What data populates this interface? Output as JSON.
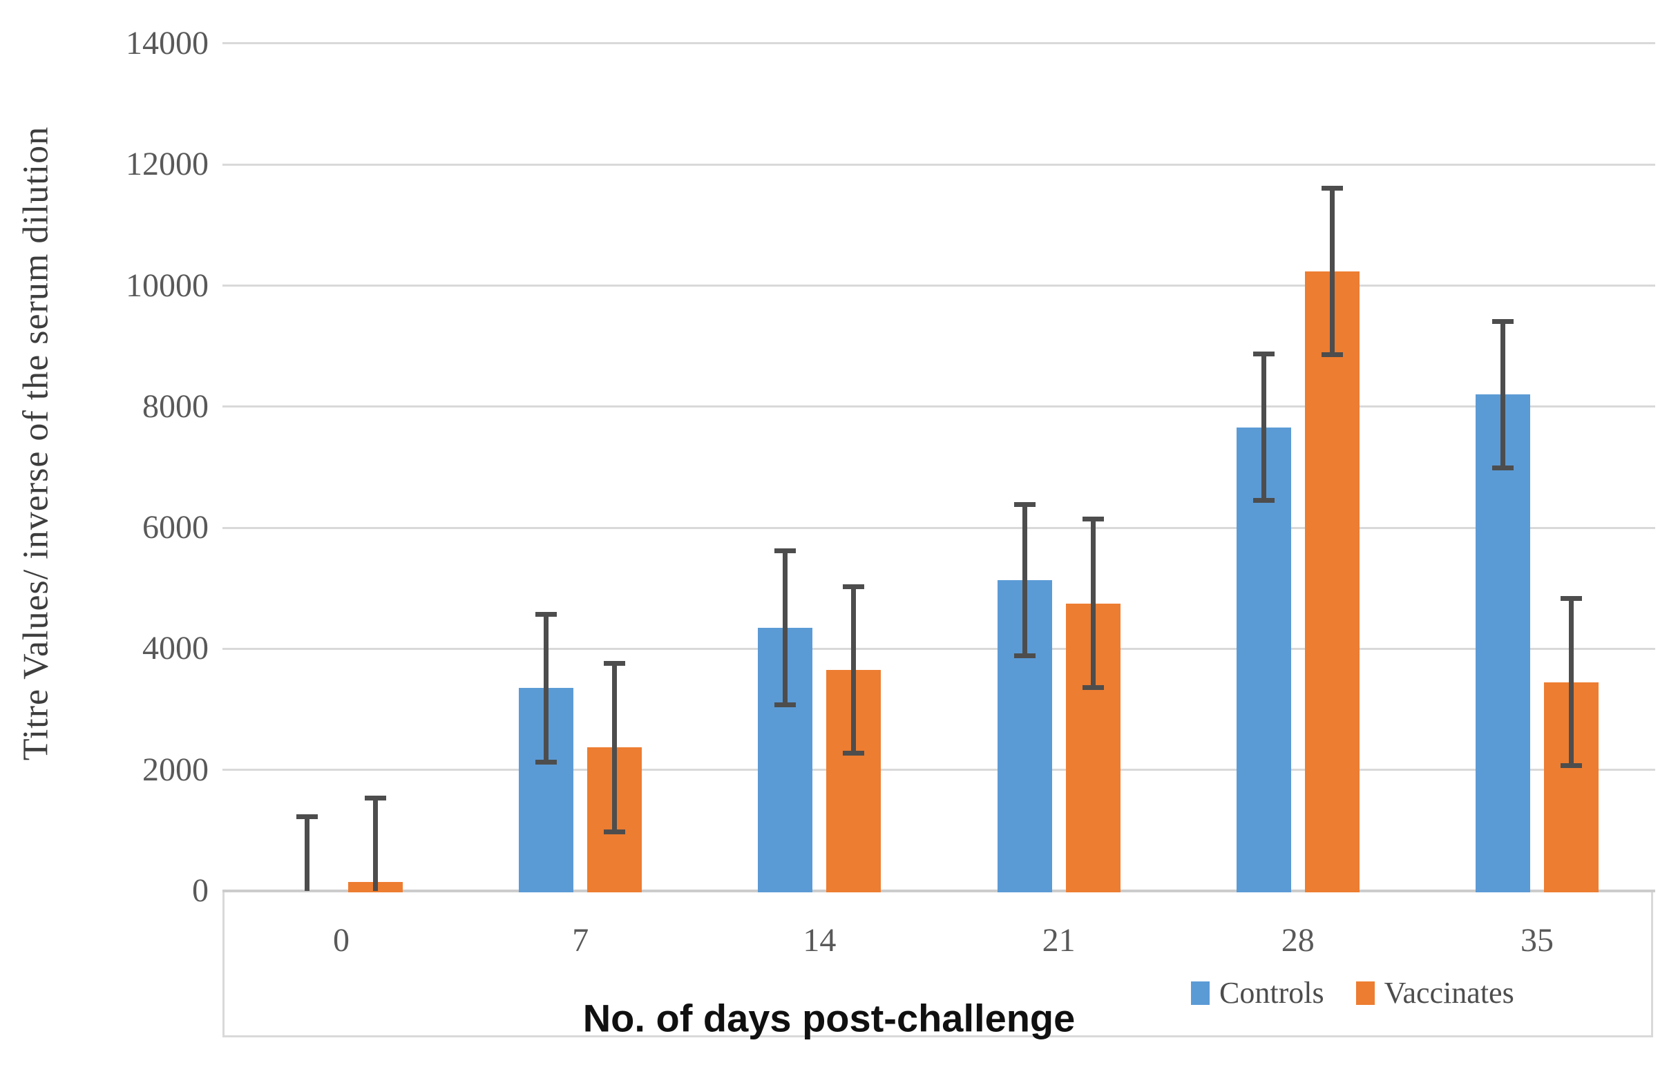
{
  "colors": {
    "controls": "#5B9BD5",
    "vaccinates": "#ED7D31",
    "error_bar": "#4d4d4d",
    "gridline": "#d9d9d9",
    "axis_line": "#cccccc",
    "tick_text": "#595959",
    "ytitle_text": "#3d3d3d",
    "xtitle_text": "#101010"
  },
  "chart_data": {
    "type": "bar",
    "title": "",
    "xlabel": "No. of days post-challenge",
    "ylabel": "Titre Values/ inverse of the serum dilution",
    "categories": [
      "0",
      "7",
      "14",
      "21",
      "28",
      "35"
    ],
    "series": [
      {
        "name": "Controls",
        "color": "#5B9BD5",
        "values": [
          0,
          3350,
          4350,
          5130,
          7660,
          8200
        ],
        "errors": [
          1230,
          1230,
          1280,
          1255,
          1215,
          1215
        ]
      },
      {
        "name": "Vaccinates",
        "color": "#ED7D31",
        "values": [
          150,
          2370,
          3650,
          4750,
          10230,
          3450
        ],
        "errors": [
          1390,
          1395,
          1380,
          1400,
          1380,
          1390
        ]
      }
    ],
    "ylim": [
      0,
      14000
    ],
    "ytick_step": 2000,
    "ytick_labels": [
      "0",
      "2000",
      "4000",
      "6000",
      "8000",
      "10000",
      "12000",
      "14000"
    ],
    "grid": true,
    "error_bars": true,
    "legend_position": "bottom-right"
  },
  "legend": {
    "controls_label": "Controls",
    "vaccinates_label": "Vaccinates"
  },
  "axes": {
    "x_title": "No. of days post-challenge",
    "y_title": "Titre Values/ inverse of the serum dilution"
  }
}
